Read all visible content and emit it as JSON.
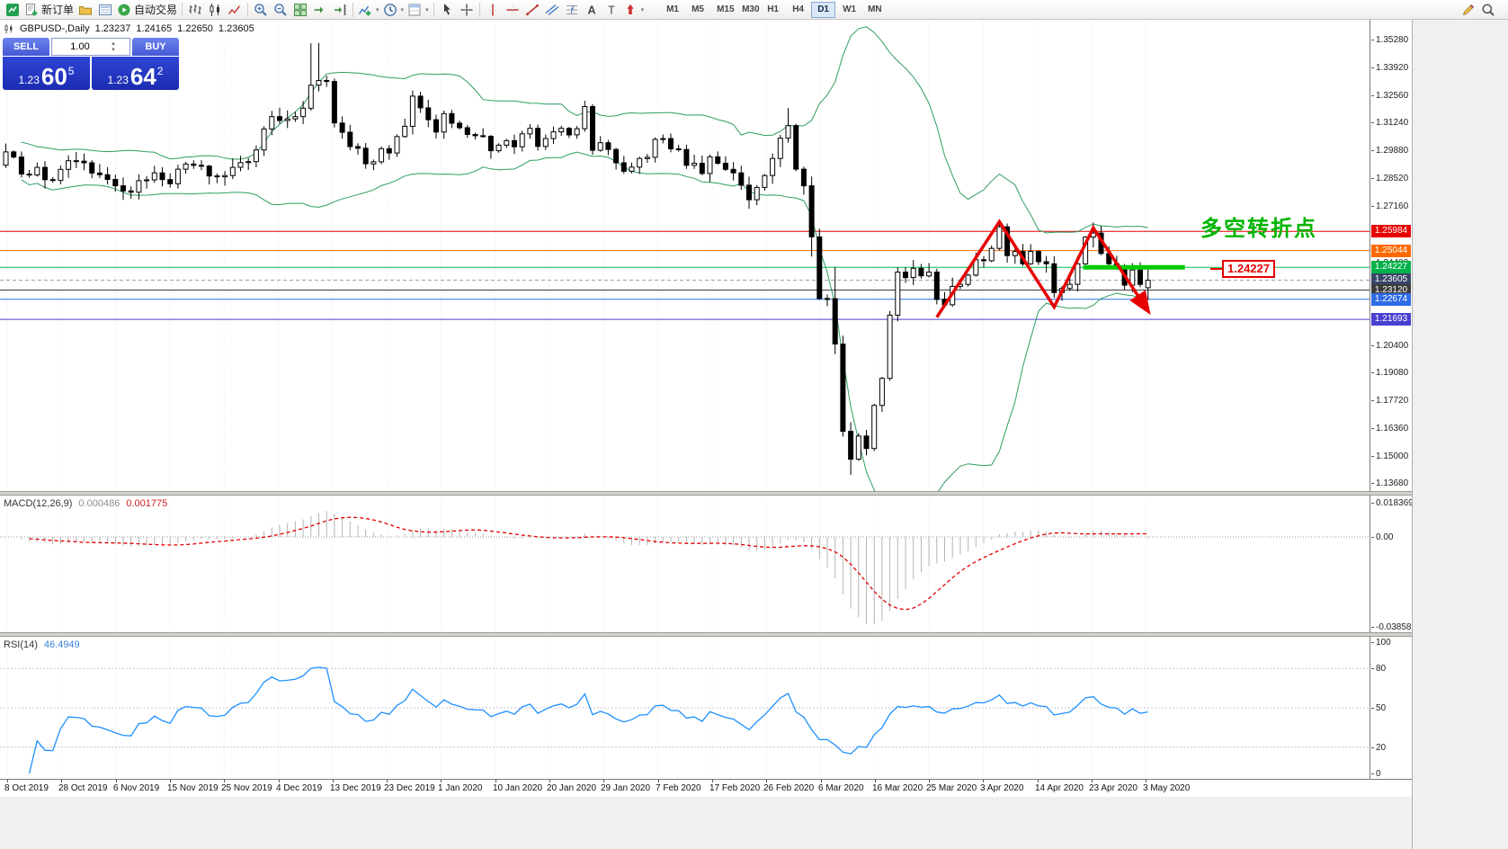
{
  "toolbar": {
    "new_order_label": "新订单",
    "autotrading_label": "自动交易",
    "timeframes": [
      "M1",
      "M5",
      "M15",
      "M30",
      "H1",
      "H4",
      "D1",
      "W1",
      "MN"
    ],
    "active_timeframe": "D1",
    "icon_names": [
      "app-icon",
      "new-order-icon",
      "profiles-icon",
      "market-watch-icon",
      "autotrading-icon",
      "bar-chart-icon",
      "candlestick-icon",
      "line-chart-icon",
      "zoom-in-icon",
      "zoom-out-icon",
      "tile-windows-icon",
      "auto-scroll-icon",
      "chart-shift-icon",
      "indicators-icon",
      "periods-icon",
      "templates-icon",
      "cursor-icon",
      "crosshair-icon",
      "vertical-line-icon",
      "horizontal-line-icon",
      "trendline-icon",
      "channel-icon",
      "fibonacci-icon",
      "text-icon",
      "label-icon",
      "arrows-icon",
      "pencil-icon",
      "search-icon"
    ]
  },
  "chart": {
    "symbol": "GBPUSD-,Daily",
    "ohlc": {
      "open": "1.23237",
      "high": "1.24165",
      "low": "1.22650",
      "close": "1.23605"
    },
    "trade_panel": {
      "sell_label": "SELL",
      "buy_label": "BUY",
      "volume": "1.00",
      "bid_prefix": "1.23",
      "bid_big": "60",
      "bid_sup": "5",
      "ask_prefix": "1.23",
      "ask_big": "64",
      "ask_sup": "2"
    },
    "annotation": {
      "text": "多空转折点",
      "color": "#00b400"
    },
    "price_tag": {
      "text": "1.24227",
      "color": "#e60000"
    },
    "levels": [
      {
        "price": 1.25984,
        "label": "1.25984",
        "color": "#e60000",
        "label_bg": "#e60000",
        "style": "solid"
      },
      {
        "price": 1.25044,
        "label": "1.25044",
        "color": "#ff6a00",
        "label_bg": "#ff6a00",
        "style": "solid"
      },
      {
        "price": 1.24227,
        "label": "1.24227",
        "color": "#00c24e",
        "label_bg": "#00b14a",
        "style": "solid"
      },
      {
        "price": 1.23605,
        "label": "1.23605",
        "color": "#9aa0b4",
        "label_bg": "#3a4668",
        "style": "dash"
      },
      {
        "price": 1.2312,
        "label": "1.23120",
        "color": "#3c3c3c",
        "label_bg": "#3c3c3c",
        "style": "solid"
      },
      {
        "price": 1.22674,
        "label": "1.22674",
        "color": "#2e6be6",
        "label_bg": "#2e6be6",
        "style": "solid"
      },
      {
        "price": 1.21693,
        "label": "1.21693",
        "color": "#4a3fd0",
        "label_bg": "#4a3fd0",
        "style": "solid"
      }
    ],
    "scale_ticks": [
      "1.35280",
      "1.33920",
      "1.32560",
      "1.31240",
      "1.29880",
      "1.28520",
      "1.27160",
      "1.24400",
      "1.20400",
      "1.19080",
      "1.17720",
      "1.16360",
      "1.15000",
      "1.13680"
    ]
  },
  "chart_data": {
    "type": "candlestick",
    "title": "GBPUSD-,Daily",
    "y_range": [
      1.1368,
      1.3528
    ],
    "closes": [
      1.2985,
      1.296,
      1.2877,
      1.2873,
      1.291,
      1.285,
      1.2846,
      1.29,
      1.2942,
      1.294,
      1.2932,
      1.2882,
      1.2874,
      1.2851,
      1.282,
      1.2795,
      1.2789,
      1.2845,
      1.2849,
      1.2883,
      1.285,
      1.283,
      1.2901,
      1.2926,
      1.292,
      1.2916,
      1.2868,
      1.2864,
      1.287,
      1.291,
      1.2933,
      1.2938,
      1.2995,
      1.3097,
      1.3157,
      1.3138,
      1.3146,
      1.3157,
      1.3198,
      1.331,
      1.3333,
      1.3328,
      1.3126,
      1.3081,
      1.3011,
      1.3003,
      1.2927,
      1.2937,
      1.3001,
      1.298,
      1.306,
      1.311,
      1.3257,
      1.32,
      1.3142,
      1.3082,
      1.3172,
      1.3125,
      1.3103,
      1.307,
      1.3064,
      1.3061,
      1.2991,
      1.3018,
      1.304,
      1.301,
      1.3073,
      1.31,
      1.3012,
      1.305,
      1.3083,
      1.31,
      1.3068,
      1.3098,
      1.3206,
      1.2993,
      1.303,
      1.2997,
      1.2932,
      1.2891,
      1.2911,
      1.2953,
      1.2959,
      1.3046,
      1.305,
      1.3,
      1.2997,
      1.292,
      1.293,
      1.288,
      1.2961,
      1.293,
      1.29,
      1.2883,
      1.2823,
      1.2752,
      1.2812,
      1.287,
      1.2953,
      1.3052,
      1.3113,
      1.2901,
      1.282,
      1.2571,
      1.2271,
      1.227,
      1.2049,
      1.1624,
      1.1488,
      1.1601,
      1.154,
      1.175,
      1.1882,
      1.219,
      1.24,
      1.2373,
      1.2418,
      1.2381,
      1.24,
      1.2267,
      1.224,
      1.233,
      1.234,
      1.2385,
      1.246,
      1.2455,
      1.2515,
      1.262,
      1.248,
      1.25,
      1.244,
      1.25,
      1.245,
      1.244,
      1.23,
      1.232,
      1.234,
      1.244,
      1.257,
      1.259,
      1.249,
      1.244,
      1.243,
      1.2336,
      1.241,
      1.234,
      1.236
    ],
    "ohlc_overrides": {
      "39": [
        1.3198,
        1.3514,
        1.3186,
        1.331
      ],
      "40": [
        1.331,
        1.3516,
        1.328,
        1.3333
      ],
      "100": [
        1.3052,
        1.3199,
        1.303,
        1.3113
      ],
      "103": [
        1.282,
        1.2865,
        1.2475,
        1.2571
      ],
      "106": [
        1.227,
        1.2425,
        1.2,
        1.2049
      ],
      "107": [
        1.2049,
        1.209,
        1.1598,
        1.1624
      ],
      "108": [
        1.1624,
        1.1668,
        1.1412,
        1.1488
      ],
      "113": [
        1.1882,
        1.221,
        1.187,
        1.219
      ],
      "127": [
        1.2515,
        1.2648,
        1.2505,
        1.262
      ],
      "138": [
        1.244,
        1.2575,
        1.2435,
        1.257
      ],
      "139": [
        1.257,
        1.2641,
        1.252,
        1.259
      ],
      "146": [
        1.23237,
        1.24165,
        1.2265,
        1.23605
      ]
    },
    "indicators": {
      "bollinger": {
        "period": 20,
        "deviation": 2
      },
      "macd": {
        "fast": 12,
        "slow": 26,
        "signal": 9
      },
      "rsi": {
        "period": 14
      }
    },
    "overlay": {
      "zigzag_points": [
        [
          119,
          1.218
        ],
        [
          127,
          1.2645
        ],
        [
          134,
          1.223
        ],
        [
          139,
          1.2615
        ],
        [
          146,
          1.221
        ]
      ],
      "support_segment": {
        "price": 1.24227,
        "from_index": 138,
        "to_index": 151
      }
    },
    "level_prices": [
      1.25984,
      1.25044,
      1.24227,
      1.23605,
      1.2312,
      1.22674,
      1.21693
    ]
  },
  "macd": {
    "name": "MACD(12,26,9)",
    "value_main": "0.000486",
    "value_signal": "0.001775",
    "scale": [
      "0.018369",
      "0.00",
      "-0.038585"
    ]
  },
  "rsi": {
    "name": "RSI(14)",
    "value": "46.4949",
    "scale": [
      "100",
      "80",
      "50",
      "20",
      "0"
    ],
    "levels": [
      80,
      50,
      20
    ]
  },
  "time_axis": {
    "labels": [
      "8 Oct 2019",
      "28 Oct 2019",
      "6 Nov 2019",
      "15 Nov 2019",
      "25 Nov 2019",
      "4 Dec 2019",
      "13 Dec 2019",
      "23 Dec 2019",
      "1 Jan 2020",
      "10 Jan 2020",
      "20 Jan 2020",
      "29 Jan 2020",
      "7 Feb 2020",
      "17 Feb 2020",
      "26 Feb 2020",
      "6 Mar 2020",
      "16 Mar 2020",
      "25 Mar 2020",
      "3 Apr 2020",
      "14 Apr 2020",
      "23 Apr 2020",
      "3 May 2020"
    ]
  }
}
